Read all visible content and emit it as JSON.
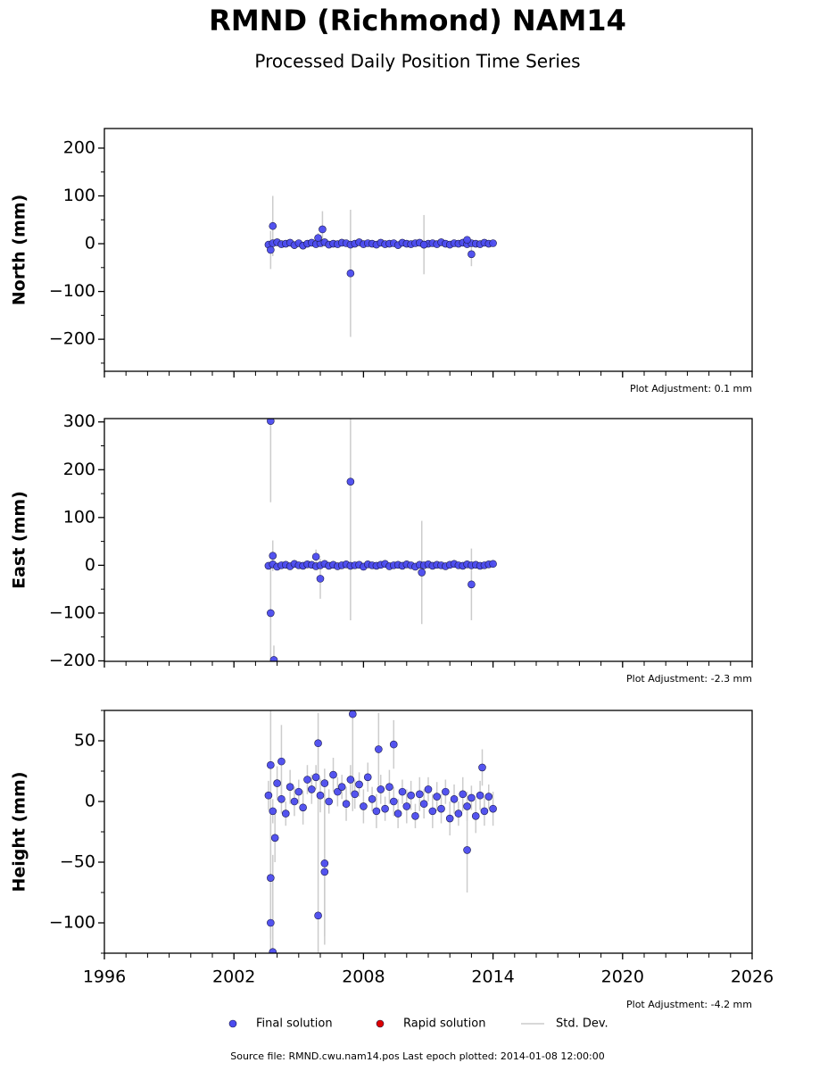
{
  "title": "RMND (Richmond) NAM14",
  "subtitle": "Processed Daily Position Time Series",
  "legend": [
    {
      "name": "Final solution",
      "color": "#4b4bef",
      "kind": "dot"
    },
    {
      "name": "Rapid solution",
      "color": "#dd0000",
      "kind": "dot"
    },
    {
      "name": "Std. Dev.",
      "color": "#cccccc",
      "kind": "line"
    }
  ],
  "source": "Source file: RMND.cwu.nam14.pos  Last epoch plotted: 2014-01-08 12:00:00",
  "chart_data": [
    {
      "type": "scatter",
      "ylabel": "North (mm)",
      "adjustment": "Plot Adjustment: 0.1 mm",
      "xlim": [
        1996,
        2026
      ],
      "xticks": [
        1996,
        2002,
        2008,
        2014,
        2020,
        2026
      ],
      "xminorticks": [
        1997,
        1998,
        1999,
        2000,
        2001,
        2003,
        2004,
        2005,
        2006,
        2007,
        2009,
        2010,
        2011,
        2012,
        2013,
        2015,
        2016,
        2017,
        2018,
        2019,
        2021,
        2022,
        2023,
        2024,
        2025
      ],
      "show_xlabels": false,
      "ylim": [
        -267,
        241
      ],
      "yticks": [
        {
          "value": -200,
          "label": "−200"
        },
        {
          "value": -100,
          "label": "−100"
        },
        0,
        100,
        200
      ],
      "yminorticks": [
        -250,
        -150,
        -50,
        50,
        150
      ],
      "series": [
        {
          "color": "#4b4bef",
          "error_color": "#cccccc",
          "x": [
            2003.6,
            2003.8,
            2004.0,
            2004.2,
            2004.4,
            2004.6,
            2004.8,
            2005.0,
            2005.2,
            2005.4,
            2005.6,
            2005.8,
            2006.0,
            2006.2,
            2006.4,
            2006.6,
            2006.8,
            2007.0,
            2007.2,
            2007.4,
            2007.6,
            2007.8,
            2008.0,
            2008.2,
            2008.4,
            2008.6,
            2008.8,
            2009.0,
            2009.2,
            2009.4,
            2009.6,
            2009.8,
            2010.0,
            2010.2,
            2010.4,
            2010.6,
            2010.8,
            2011.0,
            2011.2,
            2011.4,
            2011.6,
            2011.8,
            2012.0,
            2012.2,
            2012.4,
            2012.6,
            2012.8,
            2013.0,
            2013.2,
            2013.4,
            2013.6,
            2013.8,
            2014.0,
            2003.7,
            2003.8,
            2005.9,
            2006.1,
            2007.4,
            2010.8,
            2012.8,
            2013.0
          ],
          "values": [
            -2,
            1,
            3,
            -1,
            0,
            2,
            -3,
            1,
            -4,
            0,
            2,
            -1,
            1,
            3,
            -2,
            0,
            -1,
            2,
            1,
            -2,
            0,
            3,
            -1,
            1,
            0,
            -2,
            2,
            -1,
            0,
            1,
            -3,
            2,
            0,
            -1,
            1,
            2,
            -2,
            0,
            1,
            -1,
            3,
            0,
            -2,
            1,
            0,
            2,
            -1,
            1,
            0,
            -1,
            2,
            0,
            1,
            -13,
            37,
            12,
            30,
            -62,
            -2,
            8,
            -22
          ],
          "errors": [
            5,
            4,
            6,
            5,
            4,
            6,
            5,
            4,
            6,
            5,
            5,
            4,
            6,
            5,
            4,
            6,
            5,
            4,
            6,
            5,
            5,
            4,
            6,
            5,
            4,
            6,
            5,
            4,
            6,
            5,
            5,
            4,
            6,
            5,
            4,
            6,
            5,
            4,
            6,
            5,
            5,
            4,
            6,
            5,
            4,
            6,
            5,
            4,
            6,
            5,
            5,
            4,
            6,
            40,
            63,
            10,
            38,
            133,
            62,
            6,
            25
          ]
        }
      ]
    },
    {
      "type": "scatter",
      "ylabel": "East (mm)",
      "adjustment": "Plot Adjustment: -2.3 mm",
      "xlim": [
        1996,
        2026
      ],
      "xticks": [
        1996,
        2002,
        2008,
        2014,
        2020,
        2026
      ],
      "xminorticks": [
        1997,
        1998,
        1999,
        2000,
        2001,
        2003,
        2004,
        2005,
        2006,
        2007,
        2009,
        2010,
        2011,
        2012,
        2013,
        2015,
        2016,
        2017,
        2018,
        2019,
        2021,
        2022,
        2023,
        2024,
        2025
      ],
      "show_xlabels": false,
      "ylim": [
        -201,
        307
      ],
      "yticks": [
        {
          "value": -200,
          "label": "−200"
        },
        {
          "value": -100,
          "label": "−100"
        },
        0,
        100,
        200,
        300
      ],
      "yminorticks": [
        -150,
        -50,
        50,
        150,
        250
      ],
      "series": [
        {
          "color": "#4b4bef",
          "error_color": "#cccccc",
          "x": [
            2003.6,
            2003.8,
            2004.0,
            2004.2,
            2004.4,
            2004.6,
            2004.8,
            2005.0,
            2005.2,
            2005.4,
            2005.6,
            2005.8,
            2006.0,
            2006.2,
            2006.4,
            2006.6,
            2006.8,
            2007.0,
            2007.2,
            2007.4,
            2007.6,
            2007.8,
            2008.0,
            2008.2,
            2008.4,
            2008.6,
            2008.8,
            2009.0,
            2009.2,
            2009.4,
            2009.6,
            2009.8,
            2010.0,
            2010.2,
            2010.4,
            2010.6,
            2010.8,
            2011.0,
            2011.2,
            2011.4,
            2011.6,
            2011.8,
            2012.0,
            2012.2,
            2012.4,
            2012.6,
            2012.8,
            2013.0,
            2013.2,
            2013.4,
            2013.6,
            2013.8,
            2014.0,
            2003.7,
            2003.7,
            2003.8,
            2003.85,
            2005.8,
            2006.0,
            2007.4,
            2010.7,
            2013.0
          ],
          "values": [
            -1,
            2,
            -3,
            0,
            1,
            -2,
            3,
            0,
            -1,
            2,
            1,
            -2,
            0,
            3,
            -1,
            1,
            -2,
            0,
            2,
            -1,
            0,
            1,
            -3,
            2,
            0,
            -1,
            1,
            3,
            -2,
            0,
            1,
            -1,
            2,
            0,
            -3,
            1,
            0,
            2,
            -1,
            1,
            0,
            -2,
            1,
            3,
            0,
            -1,
            2,
            0,
            1,
            -1,
            0,
            2,
            3,
            302,
            -100,
            20,
            -198,
            18,
            -28,
            175,
            -15,
            -40
          ],
          "errors": [
            5,
            4,
            6,
            5,
            4,
            6,
            5,
            4,
            6,
            5,
            5,
            4,
            6,
            5,
            4,
            6,
            5,
            4,
            6,
            5,
            5,
            4,
            6,
            5,
            4,
            6,
            5,
            4,
            6,
            5,
            5,
            4,
            6,
            5,
            4,
            6,
            5,
            4,
            6,
            5,
            5,
            4,
            6,
            5,
            4,
            6,
            5,
            4,
            6,
            5,
            5,
            4,
            6,
            170,
            100,
            32,
            30,
            15,
            42,
            290,
            108,
            75
          ]
        }
      ]
    },
    {
      "type": "scatter",
      "ylabel": "Height (mm)",
      "adjustment": "Plot Adjustment: -4.2 mm",
      "xlim": [
        1996,
        2026
      ],
      "xticks": [
        1996,
        2002,
        2008,
        2014,
        2020,
        2026
      ],
      "xminorticks": [
        1997,
        1998,
        1999,
        2000,
        2001,
        2003,
        2004,
        2005,
        2006,
        2007,
        2009,
        2010,
        2011,
        2012,
        2013,
        2015,
        2016,
        2017,
        2018,
        2019,
        2021,
        2022,
        2023,
        2024,
        2025
      ],
      "show_xlabels": true,
      "ylim": [
        -125,
        75
      ],
      "yticks": [
        {
          "value": -100,
          "label": "−100"
        },
        {
          "value": -50,
          "label": "−50"
        },
        0,
        50
      ],
      "yminorticks": [
        -125,
        -75,
        -25,
        25,
        75
      ],
      "series": [
        {
          "color": "#4b4bef",
          "error_color": "#cccccc",
          "x": [
            2003.6,
            2003.8,
            2004.0,
            2004.2,
            2004.4,
            2004.6,
            2004.8,
            2005.0,
            2005.2,
            2005.4,
            2005.6,
            2005.8,
            2006.0,
            2006.2,
            2006.4,
            2006.6,
            2006.8,
            2007.0,
            2007.2,
            2007.4,
            2007.6,
            2007.8,
            2008.0,
            2008.2,
            2008.4,
            2008.6,
            2008.8,
            2009.0,
            2009.2,
            2009.4,
            2009.6,
            2009.8,
            2010.0,
            2010.2,
            2010.4,
            2010.6,
            2010.8,
            2011.0,
            2011.2,
            2011.4,
            2011.6,
            2011.8,
            2012.0,
            2012.2,
            2012.4,
            2012.6,
            2012.8,
            2013.0,
            2013.2,
            2013.4,
            2013.6,
            2013.8,
            2014.0,
            2003.7,
            2003.7,
            2003.8,
            2003.7,
            2004.2,
            2003.9,
            2005.9,
            2005.9,
            2006.2,
            2006.2,
            2007.5,
            2008.7,
            2009.4,
            2012.8,
            2013.5
          ],
          "values": [
            5,
            -8,
            15,
            2,
            -10,
            12,
            0,
            8,
            -5,
            18,
            10,
            20,
            5,
            15,
            0,
            22,
            8,
            12,
            -2,
            18,
            6,
            14,
            -4,
            20,
            2,
            -8,
            10,
            -6,
            12,
            0,
            -10,
            8,
            -4,
            5,
            -12,
            6,
            -2,
            10,
            -8,
            4,
            -6,
            8,
            -14,
            2,
            -10,
            6,
            -4,
            3,
            -12,
            5,
            -8,
            4,
            -6,
            -63,
            -100,
            -124,
            30,
            33,
            -30,
            48,
            -94,
            -51,
            -58,
            72,
            43,
            47,
            -40,
            28
          ],
          "errors": [
            12,
            10,
            14,
            12,
            10,
            14,
            12,
            10,
            14,
            12,
            12,
            10,
            14,
            12,
            10,
            14,
            12,
            10,
            14,
            12,
            12,
            10,
            14,
            12,
            10,
            14,
            12,
            10,
            14,
            12,
            12,
            10,
            14,
            12,
            10,
            14,
            12,
            10,
            14,
            12,
            12,
            10,
            14,
            12,
            10,
            14,
            12,
            10,
            14,
            12,
            12,
            10,
            14,
            50,
            60,
            80,
            60,
            30,
            20,
            25,
            100,
            60,
            60,
            80,
            30,
            20,
            35,
            15
          ]
        }
      ]
    }
  ]
}
